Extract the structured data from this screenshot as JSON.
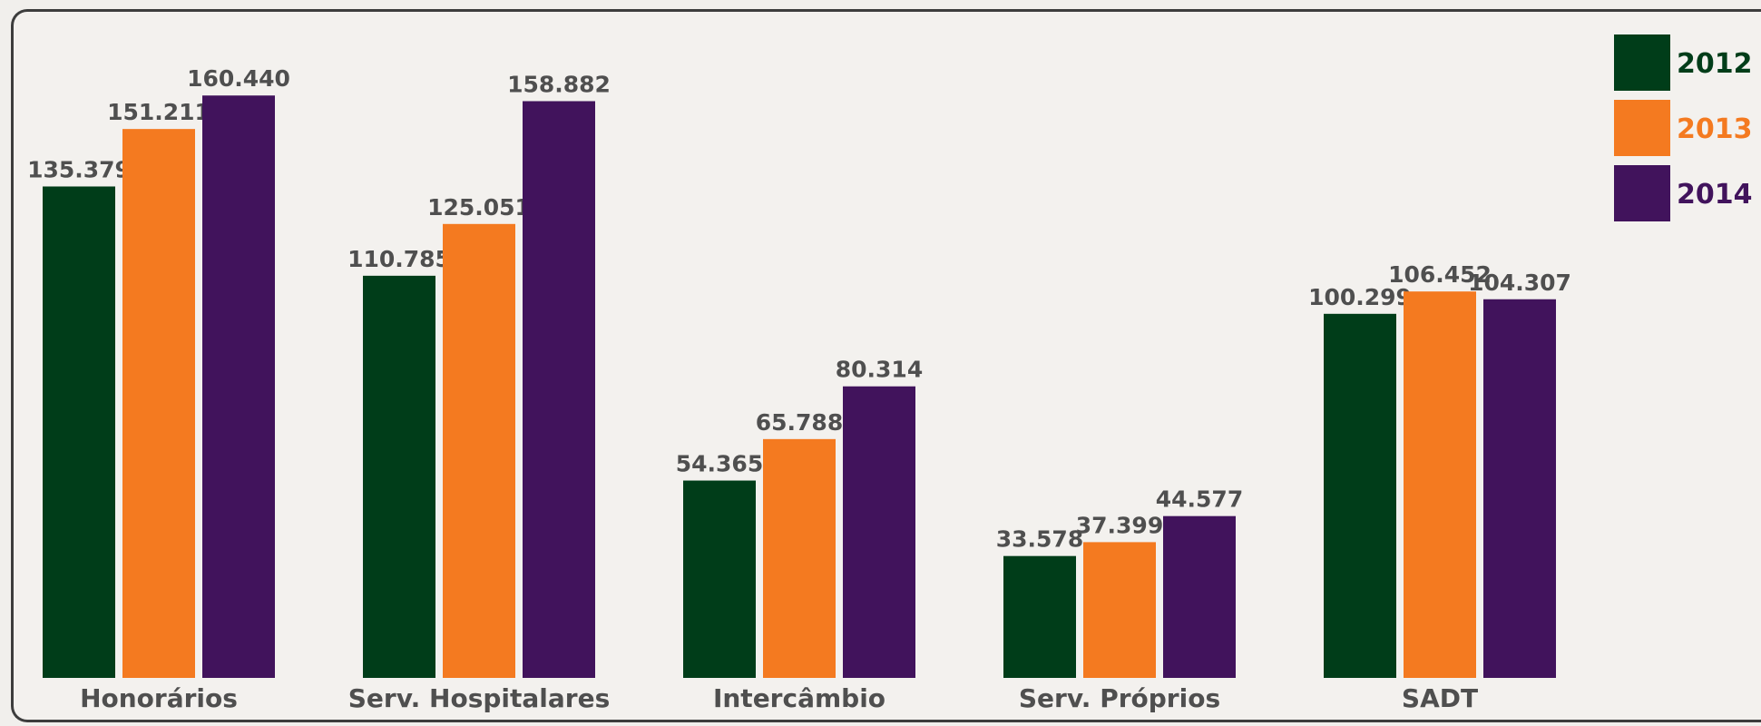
{
  "chart_data": {
    "type": "bar",
    "categories": [
      "Honorários",
      "Serv. Hospitalares",
      "Intercâmbio",
      "Serv. Próprios",
      "SADT"
    ],
    "series": [
      {
        "name": "2012",
        "color": "#003d19",
        "values": [
          135.379,
          110.785,
          54.365,
          33.578,
          100.299
        ],
        "labels": [
          "135.379",
          "110.785",
          "54.365",
          "33.578",
          "100.299"
        ]
      },
      {
        "name": "2013",
        "color": "#f47a20",
        "values": [
          151.211,
          125.051,
          65.788,
          37.399,
          106.452
        ],
        "labels": [
          "151.211",
          "125.051",
          "65.788",
          "37.399",
          "106.452"
        ]
      },
      {
        "name": "2014",
        "color": "#41135c",
        "values": [
          160.44,
          158.882,
          80.314,
          44.577,
          104.307
        ],
        "labels": [
          "160.440",
          "158.882",
          "80.314",
          "44.577",
          "104.307"
        ]
      }
    ],
    "ylim": [
      0,
      170
    ],
    "grid": false,
    "legend": "top-right",
    "title": "",
    "xlabel": "",
    "ylabel": ""
  }
}
